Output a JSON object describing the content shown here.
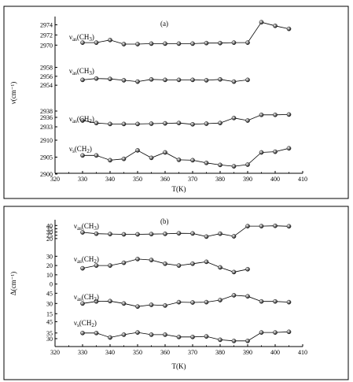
{
  "chart_data": [
    {
      "type": "line",
      "panel_label": "(a)",
      "xlabel": "T(K)",
      "ylabel": "ν(cm⁻¹)",
      "xlim": [
        320,
        410
      ],
      "x_ticks": [
        "320",
        "330",
        "340",
        "350",
        "360",
        "370",
        "380",
        "390",
        "400",
        "410"
      ],
      "x": [
        330,
        335,
        340,
        345,
        350,
        355,
        360,
        365,
        370,
        375,
        380,
        385,
        390,
        395,
        400,
        405
      ],
      "series": [
        {
          "name": "νas(CH3)",
          "ylim": [
            2968.5,
            2975
          ],
          "y_ticks": [
            "2970",
            "2972",
            "2974"
          ],
          "x": [
            330,
            335,
            340,
            345,
            350,
            355,
            360,
            365,
            370,
            375,
            380,
            385,
            390,
            395,
            400,
            405
          ],
          "values": [
            2970.5,
            2970.5,
            2971,
            2970.2,
            2970.2,
            2970.3,
            2970.3,
            2970.3,
            2970.3,
            2970.4,
            2970.4,
            2970.5,
            2970.5,
            2974.5,
            2973.8,
            2973.2
          ]
        },
        {
          "name": "νas(CH3)",
          "ylim": [
            2953.5,
            2958.8
          ],
          "y_ticks": [
            "2954",
            "2956",
            "2958"
          ],
          "x": [
            330,
            335,
            340,
            345,
            350,
            355,
            360,
            365,
            370,
            375,
            380,
            385,
            390
          ],
          "values": [
            2955.2,
            2955.5,
            2955.4,
            2955.1,
            2954.8,
            2955.3,
            2955.2,
            2955.2,
            2955.2,
            2955.1,
            2955.3,
            2954.8,
            2955.2
          ]
        },
        {
          "name": "νas(CH2)",
          "ylim": [
            2932,
            2939.5
          ],
          "y_ticks": [
            "2933",
            "2936",
            "2938"
          ],
          "x": [
            330,
            335,
            340,
            345,
            350,
            355,
            360,
            365,
            370,
            375,
            380,
            385,
            390,
            395,
            400,
            405
          ],
          "values": [
            2935,
            2934.2,
            2933.9,
            2933.9,
            2933.9,
            2934,
            2934.1,
            2934.2,
            2933.8,
            2934,
            2934.2,
            2935.8,
            2935,
            2936.8,
            2936.8,
            2936.9
          ]
        },
        {
          "name": "νs(CH2)",
          "ylim": [
            2900,
            2910
          ],
          "y_ticks": [
            "2900",
            "2905",
            "2910"
          ],
          "x": [
            330,
            335,
            340,
            345,
            350,
            355,
            360,
            365,
            370,
            375,
            380,
            385,
            390,
            395,
            400,
            405
          ],
          "values": [
            2905.5,
            2905.5,
            2904.1,
            2904.5,
            2907,
            2904.8,
            2906.4,
            2904.2,
            2904.1,
            2903.3,
            2902.7,
            2902.3,
            2902.8,
            2906.4,
            2906.6,
            2907.6
          ]
        }
      ]
    },
    {
      "type": "line",
      "panel_label": "(b)",
      "xlabel": "T(K)",
      "ylabel": "Δ(cm⁻¹)",
      "xlim": [
        320,
        410
      ],
      "x_ticks": [
        "320",
        "330",
        "340",
        "350",
        "360",
        "370",
        "380",
        "390",
        "400",
        "410"
      ],
      "x": [
        330,
        335,
        340,
        345,
        350,
        355,
        360,
        365,
        370,
        375,
        380,
        385,
        390,
        395,
        400,
        405
      ],
      "series": [
        {
          "name": "νas(CH3)",
          "ylim": [
            15,
            44
          ],
          "y_ticks": [
            "20",
            "25",
            "30",
            "35",
            "40"
          ],
          "x": [
            330,
            335,
            340,
            345,
            350,
            355,
            360,
            365,
            370,
            375,
            380,
            385,
            390,
            395,
            400,
            405
          ],
          "values": [
            29.5,
            27.5,
            27,
            26.5,
            26.5,
            26.8,
            27.2,
            28,
            27.8,
            23,
            27.5,
            23.5,
            39,
            39,
            39.5,
            38.8
          ]
        },
        {
          "name": "νas(CH2)",
          "ylim": [
            -2,
            32
          ],
          "y_ticks": [
            "0",
            "10",
            "20",
            "30"
          ],
          "x": [
            330,
            335,
            340,
            345,
            350,
            355,
            360,
            365,
            370,
            375,
            380,
            385,
            390
          ],
          "values": [
            17,
            20,
            20,
            23,
            27,
            26,
            22,
            20,
            22,
            24,
            18,
            13,
            16
          ]
        },
        {
          "name": "νas(CH2)",
          "ylim": [
            13,
            50
          ],
          "y_ticks": [
            "15",
            "30",
            "45"
          ],
          "x": [
            330,
            335,
            340,
            345,
            350,
            355,
            360,
            365,
            370,
            375,
            380,
            385,
            390,
            395,
            400,
            405
          ],
          "values": [
            30,
            33,
            33.5,
            30,
            25.5,
            28,
            27,
            32,
            31.5,
            32,
            35,
            42,
            40.5,
            33,
            33,
            32
          ]
        },
        {
          "name": "νs(CH2)",
          "ylim": [
            23,
            46
          ],
          "y_ticks": [
            "30",
            "35",
            "45"
          ],
          "x": [
            330,
            335,
            340,
            345,
            350,
            355,
            360,
            365,
            370,
            375,
            380,
            385,
            390,
            395,
            400,
            405
          ],
          "values": [
            35,
            35,
            31,
            33.5,
            35.5,
            33.5,
            33.5,
            31.5,
            31.5,
            32,
            29,
            28,
            28,
            35.5,
            35.5,
            36
          ]
        }
      ]
    }
  ]
}
